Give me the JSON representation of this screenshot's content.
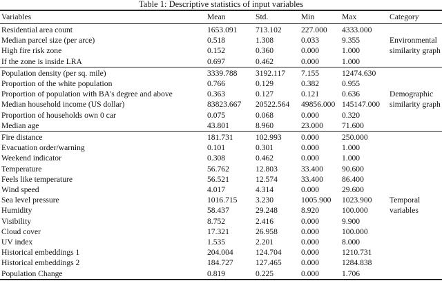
{
  "title": "Table 1: Descriptive statistics of input variables",
  "headers": [
    "Variables",
    "Mean",
    "Std.",
    "Min",
    "Max",
    "Category"
  ],
  "sections": [
    {
      "category": "Environmental similarity graph",
      "rows": [
        [
          "Residential area count",
          "1653.091",
          "713.102",
          "227.000",
          "4333.000"
        ],
        [
          "Median parcel size (per arce)",
          "0.518",
          "1.308",
          "0.033",
          "9.355"
        ],
        [
          "High fire risk zone",
          "0.152",
          "0.360",
          "0.000",
          "1.000"
        ],
        [
          "If the zone is inside LRA",
          "0.697",
          "0.462",
          "0.000",
          "1.000"
        ]
      ]
    },
    {
      "category": "Demographic similarity graph",
      "rows": [
        [
          "Population density (per sq. mile)",
          "3339.788",
          "3192.117",
          "7.155",
          "12474.630"
        ],
        [
          "Proportion of the white population",
          "0.766",
          "0.129",
          "0.382",
          "0.955"
        ],
        [
          "Proportion of population with BA's degree and above",
          "0.363",
          "0.127",
          "0.121",
          "0.636"
        ],
        [
          "Median household income (US dollar)",
          "83823.667",
          "20522.564",
          "49856.000",
          "145147.000"
        ],
        [
          "Proportion of households own 0 car",
          "0.075",
          "0.068",
          "0.000",
          "0.320"
        ],
        [
          "Median age",
          "43.801",
          "8.960",
          "23.000",
          "71.600"
        ]
      ]
    },
    {
      "category": "Temporal variables",
      "rows": [
        [
          "Fire distance",
          "181.731",
          "102.993",
          "0.000",
          "250.000"
        ],
        [
          "Evacuation order/warning",
          "0.101",
          "0.301",
          "0.000",
          "1.000"
        ],
        [
          "Weekend indicator",
          "0.308",
          "0.462",
          "0.000",
          "1.000"
        ],
        [
          "Temperature",
          "56.762",
          "12.803",
          "33.400",
          "90.600"
        ],
        [
          "Feels like temperature",
          "56.521",
          "12.574",
          "33.400",
          "86.400"
        ],
        [
          "Wind speed",
          "4.017",
          "4.314",
          "0.000",
          "29.600"
        ],
        [
          "Sea level pressure",
          "1016.715",
          "3.230",
          "1005.900",
          "1023.900"
        ],
        [
          "Humidity",
          "58.437",
          "29.248",
          "8.920",
          "100.000"
        ],
        [
          "Visibility",
          "8.752",
          "2.416",
          "0.000",
          "9.900"
        ],
        [
          "Cloud cover",
          "17.321",
          "26.958",
          "0.000",
          "100.000"
        ],
        [
          "UV index",
          "1.535",
          "2.201",
          "0.000",
          "8.000"
        ],
        [
          "Historical embeddings 1",
          "204.004",
          "124.704",
          "0.000",
          "1210.731"
        ],
        [
          "Historical embeddings 2",
          "184.727",
          "127.465",
          "0.000",
          "1284.838"
        ],
        [
          "Population Change",
          "0.819",
          "0.225",
          "0.000",
          "1.706"
        ]
      ]
    }
  ]
}
